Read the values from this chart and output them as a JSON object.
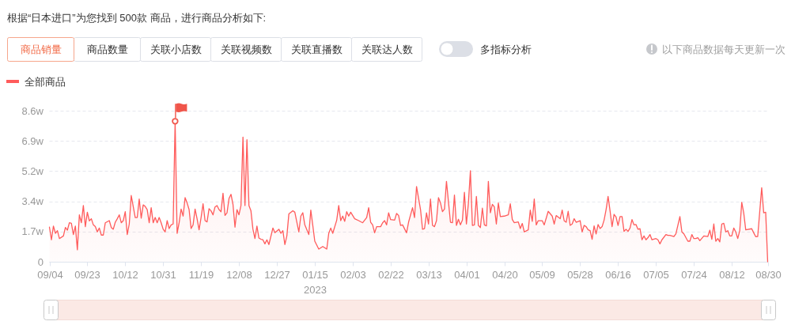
{
  "chart_data": {
    "type": "area",
    "title": "根据“日本进口”为您找到 500款 商品，进行商品分析如下:",
    "annotations": [
      "商品销量",
      "商品数量",
      "关联小店数",
      "关联视频数",
      "关联直播数",
      "关联达人数",
      "多指标分析",
      "以下商品数据每天更新一次"
    ],
    "legend": "top left",
    "grid": "y",
    "xlim": [
      "2022-09-04",
      "2023-08-30"
    ],
    "xticks": [
      {
        "value": "2022-09-04",
        "label": "09/04"
      },
      {
        "value": "2022-09-23",
        "label": "09/23"
      },
      {
        "value": "2022-10-12",
        "label": "10/12"
      },
      {
        "value": "2022-10-31",
        "label": "10/31"
      },
      {
        "value": "2022-11-19",
        "label": "11/19"
      },
      {
        "value": "2022-12-08",
        "label": "12/08"
      },
      {
        "value": "2022-12-27",
        "label": "12/27"
      },
      {
        "value": "2023-01-15",
        "label": "01/15\n2023"
      },
      {
        "value": "2023-02-03",
        "label": "02/03"
      },
      {
        "value": "2023-02-22",
        "label": "02/22"
      },
      {
        "value": "2023-03-13",
        "label": "03/13"
      },
      {
        "value": "2023-04-01",
        "label": "04/01"
      },
      {
        "value": "2023-04-20",
        "label": "04/20"
      },
      {
        "value": "2023-05-09",
        "label": "05/09"
      },
      {
        "value": "2023-05-28",
        "label": "05/28"
      },
      {
        "value": "2023-06-16",
        "label": "06/16"
      },
      {
        "value": "2023-07-05",
        "label": "07/05"
      },
      {
        "value": "2023-07-24",
        "label": "07/24"
      },
      {
        "value": "2023-08-12",
        "label": "08/12"
      },
      {
        "value": "2023-08-30",
        "label": "08/30"
      }
    ],
    "ylim": [
      0,
      8.6
    ],
    "yticks": [
      0,
      {
        "value": 1.72,
        "label": "1.7w"
      },
      {
        "value": 3.44,
        "label": "3.4w"
      },
      {
        "value": 5.16,
        "label": "5.2w"
      },
      {
        "value": 6.88,
        "label": "6.9w"
      },
      {
        "value": 8.6,
        "label": "8.6w"
      }
    ],
    "series": [
      {
        "name": "全部商品",
        "color": "#ff5b5b",
        "x": [
          "2022-09-04",
          "2022-09-05",
          "2022-09-06",
          "2022-09-07",
          "2022-09-08",
          "2022-09-09",
          "2022-09-11",
          "2022-09-12",
          "2022-09-13",
          "2022-09-14",
          "2022-09-15",
          "2022-09-16",
          "2022-09-17",
          "2022-09-18",
          "2022-09-19",
          "2022-09-20",
          "2022-09-21",
          "2022-09-22",
          "2022-09-23",
          "2022-09-24",
          "2022-09-25",
          "2022-09-26",
          "2022-09-27",
          "2022-09-28",
          "2022-09-29",
          "2022-09-30",
          "2022-10-01",
          "2022-10-02",
          "2022-10-04",
          "2022-10-05",
          "2022-10-06",
          "2022-10-07",
          "2022-10-08",
          "2022-10-09",
          "2022-10-10",
          "2022-10-11",
          "2022-10-12",
          "2022-10-13",
          "2022-10-14",
          "2022-10-15",
          "2022-10-16",
          "2022-10-17",
          "2022-10-18",
          "2022-10-19",
          "2022-10-20",
          "2022-10-21",
          "2022-10-22",
          "2022-10-23",
          "2022-10-24",
          "2022-10-25",
          "2022-10-26",
          "2022-10-27",
          "2022-10-28",
          "2022-10-29",
          "2022-10-30",
          "2022-10-31",
          "2022-11-01",
          "2022-11-02",
          "2022-11-03",
          "2022-11-04",
          "2022-11-05",
          "2022-11-06",
          "2022-11-07",
          "2022-11-08",
          "2022-11-09",
          "2022-11-10",
          "2022-11-11",
          "2022-11-12",
          "2022-11-13",
          "2022-11-14",
          "2022-11-15",
          "2022-11-16",
          "2022-11-17",
          "2022-11-18",
          "2022-11-19",
          "2022-11-20",
          "2022-11-21",
          "2022-11-22",
          "2022-11-23",
          "2022-11-24",
          "2022-11-25",
          "2022-11-26",
          "2022-11-27",
          "2022-11-28",
          "2022-11-29",
          "2022-11-30",
          "2022-12-01",
          "2022-12-02",
          "2022-12-03",
          "2022-12-04",
          "2022-12-05",
          "2022-12-06",
          "2022-12-07",
          "2022-12-08",
          "2022-12-09",
          "2022-12-10",
          "2022-12-11",
          "2022-12-12",
          "2022-12-13",
          "2022-12-14",
          "2022-12-15",
          "2022-12-16",
          "2022-12-17",
          "2022-12-18",
          "2022-12-19",
          "2022-12-20",
          "2022-12-21",
          "2022-12-22",
          "2022-12-23",
          "2022-12-25",
          "2022-12-26",
          "2022-12-28",
          "2022-12-29",
          "2022-12-30",
          "2022-12-31",
          "2023-01-01",
          "2023-01-02",
          "2023-01-04",
          "2023-01-05",
          "2023-01-07",
          "2023-01-08",
          "2023-01-09",
          "2023-01-10",
          "2023-01-12",
          "2023-01-13",
          "2023-01-14",
          "2023-01-15",
          "2023-01-17",
          "2023-01-19",
          "2023-01-21",
          "2023-01-22",
          "2023-01-23",
          "2023-01-24",
          "2023-01-26",
          "2023-01-27",
          "2023-01-28",
          "2023-01-29",
          "2023-01-30",
          "2023-01-31",
          "2023-02-01",
          "2023-02-02",
          "2023-02-04",
          "2023-02-06",
          "2023-02-08",
          "2023-02-10",
          "2023-02-11",
          "2023-02-12",
          "2023-02-13",
          "2023-02-14",
          "2023-02-15",
          "2023-02-17",
          "2023-02-18",
          "2023-02-19",
          "2023-02-20",
          "2023-02-21",
          "2023-02-22",
          "2023-02-24",
          "2023-02-25",
          "2023-02-26",
          "2023-02-27",
          "2023-02-28",
          "2023-03-02",
          "2023-03-03",
          "2023-03-05",
          "2023-03-06",
          "2023-03-07",
          "2023-03-09",
          "2023-03-10",
          "2023-03-11",
          "2023-03-12",
          "2023-03-13",
          "2023-03-14",
          "2023-03-15",
          "2023-03-16",
          "2023-03-17",
          "2023-03-18",
          "2023-03-19",
          "2023-03-20",
          "2023-03-21",
          "2023-03-22",
          "2023-03-24",
          "2023-03-25",
          "2023-03-26",
          "2023-03-27",
          "2023-03-28",
          "2023-03-29",
          "2023-03-30",
          "2023-03-31",
          "2023-04-01",
          "2023-04-02",
          "2023-04-03",
          "2023-04-04",
          "2023-04-05",
          "2023-04-06",
          "2023-04-07",
          "2023-04-08",
          "2023-04-09",
          "2023-04-10",
          "2023-04-11",
          "2023-04-12",
          "2023-04-13",
          "2023-04-14",
          "2023-04-15",
          "2023-04-16",
          "2023-04-17",
          "2023-04-18",
          "2023-04-20",
          "2023-04-22",
          "2023-04-23",
          "2023-04-24",
          "2023-04-25",
          "2023-04-27",
          "2023-04-28",
          "2023-04-29",
          "2023-04-30",
          "2023-05-02",
          "2023-05-03",
          "2023-05-04",
          "2023-05-05",
          "2023-05-06",
          "2023-05-07",
          "2023-05-09",
          "2023-05-10",
          "2023-05-12",
          "2023-05-14",
          "2023-05-15",
          "2023-05-16",
          "2023-05-18",
          "2023-05-19",
          "2023-05-20",
          "2023-05-21",
          "2023-05-22",
          "2023-05-23",
          "2023-05-24",
          "2023-05-25",
          "2023-05-26",
          "2023-05-28",
          "2023-05-29",
          "2023-05-30",
          "2023-05-31",
          "2023-06-01",
          "2023-06-02",
          "2023-06-03",
          "2023-06-04",
          "2023-06-05",
          "2023-06-06",
          "2023-06-07",
          "2023-06-08",
          "2023-06-09",
          "2023-06-10",
          "2023-06-11",
          "2023-06-12",
          "2023-06-13",
          "2023-06-14",
          "2023-06-15",
          "2023-06-16",
          "2023-06-17",
          "2023-06-18",
          "2023-06-19",
          "2023-06-20",
          "2023-06-21",
          "2023-06-22",
          "2023-06-23",
          "2023-06-24",
          "2023-06-25",
          "2023-06-26",
          "2023-06-27",
          "2023-06-28",
          "2023-06-29",
          "2023-06-30",
          "2023-07-01",
          "2023-07-02",
          "2023-07-03",
          "2023-07-05",
          "2023-07-06",
          "2023-07-07",
          "2023-07-08",
          "2023-07-10",
          "2023-07-11",
          "2023-07-12",
          "2023-07-14",
          "2023-07-15",
          "2023-07-17",
          "2023-07-18",
          "2023-07-19",
          "2023-07-21",
          "2023-07-22",
          "2023-07-23",
          "2023-07-24",
          "2023-07-25",
          "2023-07-26",
          "2023-07-27",
          "2023-07-29",
          "2023-07-31",
          "2023-08-01",
          "2023-08-02",
          "2023-08-03",
          "2023-08-04",
          "2023-08-05",
          "2023-08-06",
          "2023-08-07",
          "2023-08-08",
          "2023-08-09",
          "2023-08-10",
          "2023-08-11",
          "2023-08-12",
          "2023-08-13",
          "2023-08-14",
          "2023-08-15",
          "2023-08-16",
          "2023-08-17",
          "2023-08-18",
          "2023-08-19",
          "2023-08-22",
          "2023-08-23",
          "2023-08-24",
          "2023-08-25",
          "2023-08-27",
          "2023-08-28",
          "2023-08-29",
          "2023-08-30"
        ],
        "values": [
          1.97,
          1.25,
          2.03,
          1.62,
          1.77,
          1.32,
          1.47,
          1.95,
          1.8,
          2.22,
          2.19,
          1.55,
          2.03,
          0.68,
          2.67,
          2.22,
          3.2,
          2.0,
          2.82,
          2.33,
          2.45,
          2.1,
          2.0,
          1.7,
          1.92,
          1.52,
          1.52,
          2.22,
          2.34,
          1.95,
          1.85,
          2.25,
          2.45,
          2.67,
          2.22,
          2.34,
          2.85,
          1.55,
          2.15,
          3.77,
          3.15,
          2.52,
          2.52,
          3.57,
          2.48,
          3.24,
          3.15,
          2.97,
          2.22,
          3.08,
          2.22,
          2.52,
          2.22,
          2.52,
          2.22,
          1.85,
          1.7,
          2.34,
          1.89,
          2.1,
          2.15,
          8.0,
          1.62,
          2.22,
          3.0,
          2.6,
          3.65,
          3.35,
          2.97,
          1.89,
          2.1,
          3.0,
          2.45,
          1.82,
          2.52,
          3.3,
          2.34,
          2.27,
          3.02,
          2.9,
          2.67,
          3.12,
          3.2,
          2.97,
          2.85,
          3.9,
          2.64,
          2.79,
          3.6,
          3.84,
          3.27,
          1.97,
          2.97,
          2.67,
          3.2,
          7.1,
          3.2,
          6.95,
          3.2,
          2.9,
          1.85,
          1.32,
          2.03,
          1.35,
          1.28,
          1.25,
          1.02,
          1.25,
          0.98,
          1.92,
          1.65,
          1.85,
          1.62,
          1.77,
          0.98,
          1.47,
          2.72,
          2.9,
          2.82,
          1.7,
          2.6,
          2.79,
          2.1,
          1.55,
          2.94,
          2.07,
          1.17,
          0.72,
          0.87,
          0.72,
          1.62,
          1.92,
          1.62,
          2.37,
          3.2,
          2.34,
          2.6,
          2.3,
          2.85,
          2.6,
          2.82,
          2.45,
          2.34,
          2.22,
          2.52,
          3.08,
          2.25,
          2.1,
          1.65,
          2.0,
          2.0,
          2.22,
          2.34,
          2.1,
          2.79,
          2.4,
          2.37,
          2.75,
          2.64,
          2.07,
          2.1,
          1.65,
          2.25,
          3.08,
          2.52,
          4.28,
          2.97,
          1.85,
          1.89,
          2.79,
          2.15,
          3.57,
          2.07,
          2.0,
          2.34,
          3.65,
          3.35,
          2.85,
          3.0,
          4.58,
          2.25,
          2.22,
          3.8,
          2.07,
          2.42,
          2.1,
          2.37,
          3.95,
          2.15,
          3.35,
          5.18,
          2.07,
          2.1,
          3.72,
          2.07,
          1.95,
          3.05,
          2.1,
          2.04,
          4.58,
          2.79,
          3.27,
          3.12,
          2.15,
          3.35,
          2.57,
          2.6,
          2.67,
          3.3,
          2.4,
          2.22,
          2.27,
          1.89,
          2.18,
          1.7,
          1.82,
          2.94,
          2.3,
          3.57,
          2.1,
          2.34,
          2.34,
          2.1,
          2.87,
          2.6,
          2.15,
          2.63,
          2.45,
          2.94,
          2.33,
          2.25,
          2.87,
          2.07,
          2.15,
          2.45,
          2.25,
          2.34,
          1.7,
          2.07,
          2.0,
          1.82,
          1.77,
          1.28,
          2.04,
          1.58,
          2.12,
          1.89,
          2.0,
          2.37,
          2.97,
          3.72,
          2.9,
          2.0,
          2.7,
          2.55,
          2.07,
          2.57,
          2.57,
          1.73,
          1.85,
          1.73,
          1.92,
          2.4,
          2.1,
          2.12,
          1.85,
          1.88,
          1.25,
          1.47,
          1.25,
          1.37,
          1.55,
          1.25,
          1.32,
          1.25,
          1.02,
          1.25,
          1.55,
          1.5,
          1.5,
          1.43,
          1.59,
          2.57,
          1.7,
          1.59,
          1.17,
          1.17,
          1.55,
          1.32,
          1.32,
          1.37,
          1.2,
          1.47,
          1.44,
          1.8,
          1.28,
          2.15,
          1.17,
          1.32,
          1.13,
          2.15,
          2.19,
          1.7,
          1.77,
          1.47,
          1.47,
          1.92,
          1.7,
          1.32,
          1.77,
          3.38,
          2.78,
          1.82,
          1.88,
          1.65,
          1.43,
          1.44,
          4.22,
          2.79,
          2.82,
          0
        ]
      },
      {
        "type": "scatter",
        "color": "#f0554a",
        "x": [
          "2022-11-06"
        ],
        "values": [
          8.0
        ]
      }
    ]
  }
}
